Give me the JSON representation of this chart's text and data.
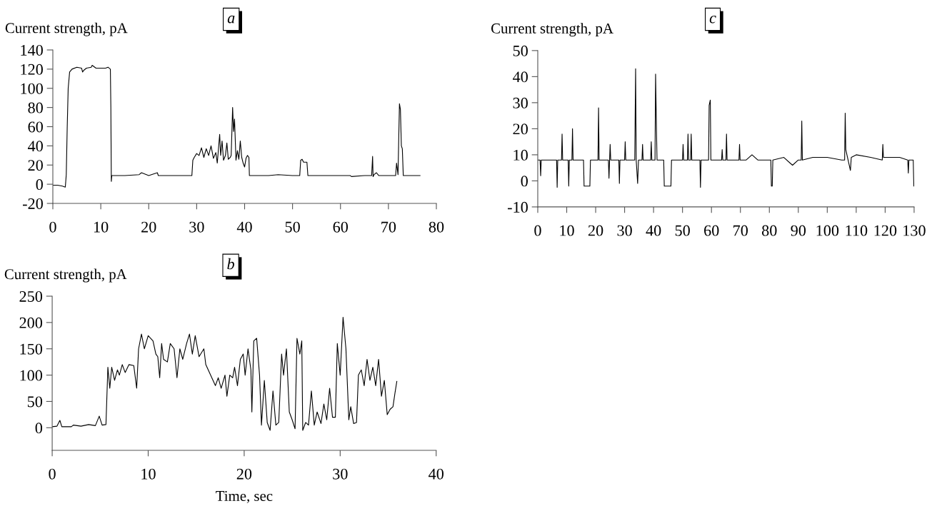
{
  "chart_data": [
    {
      "type": "line",
      "title": "a",
      "ylabel": "Current strength, pA",
      "xlim": [
        0,
        80
      ],
      "xticks": [
        0,
        10,
        20,
        30,
        40,
        50,
        60,
        70,
        80
      ],
      "ylim": [
        -20,
        140
      ],
      "yticks": [
        -20,
        0,
        20,
        40,
        60,
        80,
        100,
        120,
        140
      ],
      "series": [
        {
          "color": "#000000",
          "x": [
            0,
            1,
            2,
            2.6,
            2.8,
            3.0,
            3.2,
            3.5,
            4,
            5,
            6,
            6.2,
            6.5,
            7,
            8,
            8.2,
            9,
            10,
            11,
            11.5,
            12,
            12.1,
            12.2,
            12.3,
            15,
            18,
            18.5,
            20,
            21.8,
            22,
            25,
            29,
            29.2,
            29.5,
            30,
            30.5,
            31,
            31.5,
            32,
            32.5,
            33,
            33.5,
            34,
            34.3,
            34.8,
            35,
            35.3,
            35.6,
            36,
            36.3,
            36.6,
            37,
            37.2,
            37.5,
            37.7,
            37.9,
            38.2,
            38.5,
            38.8,
            39.1,
            39.4,
            39.7,
            40,
            40.3,
            40.6,
            40.9,
            41,
            45,
            47,
            50,
            51.5,
            51.7,
            52,
            52.3,
            53,
            53.2,
            55,
            60,
            62,
            62.3,
            65,
            66.5,
            66.7,
            66.8,
            67,
            67.5,
            68,
            71.5,
            71.7,
            72,
            72.3,
            72.5,
            72.7,
            72.9,
            73.1,
            76.6
          ],
          "values": [
            -1,
            -1,
            -2,
            -3,
            10,
            60,
            100,
            117,
            120,
            122,
            121,
            117,
            119,
            121,
            122,
            124,
            121,
            121,
            121,
            122,
            120,
            80,
            3,
            9,
            9,
            10,
            12,
            9,
            12,
            9,
            9,
            9,
            25,
            28,
            32,
            30,
            38,
            28,
            37,
            30,
            40,
            27,
            33,
            22,
            52,
            30,
            45,
            25,
            30,
            43,
            26,
            28,
            30,
            80,
            55,
            68,
            25,
            35,
            26,
            45,
            28,
            22,
            18,
            27,
            30,
            28,
            9,
            9,
            10,
            9,
            9,
            25,
            26,
            23,
            23,
            9,
            9,
            9,
            9,
            8,
            9,
            9,
            29,
            8,
            10,
            12,
            9,
            9,
            22,
            10,
            84,
            78,
            40,
            37,
            9,
            9
          ]
        }
      ]
    },
    {
      "type": "line",
      "title": "c",
      "ylabel": "Current strength, pA",
      "xlim": [
        0,
        130
      ],
      "xticks": [
        0,
        10,
        20,
        30,
        40,
        50,
        60,
        70,
        80,
        90,
        100,
        110,
        120,
        130
      ],
      "ylim": [
        -10,
        50
      ],
      "yticks": [
        -10,
        0,
        10,
        20,
        30,
        40,
        50
      ],
      "series": [
        {
          "color": "#000000",
          "x": [
            0,
            0.8,
            1,
            1.2,
            6.5,
            6.7,
            6.9,
            8.2,
            8.4,
            8.6,
            10.5,
            10.7,
            10.9,
            11.8,
            12,
            12.2,
            15.8,
            16,
            18,
            18.2,
            20.8,
            21,
            21.2,
            24.4,
            24.6,
            25,
            25.2,
            28,
            28.2,
            28.4,
            30,
            30.2,
            30.4,
            33.5,
            33.8,
            34,
            34.5,
            34.8,
            36,
            36.2,
            36.4,
            39,
            39.2,
            39.4,
            40.5,
            40.7,
            41,
            41.2,
            43.5,
            43.7,
            46,
            46.2,
            50,
            50.2,
            50.4,
            51.7,
            51.9,
            52.1,
            52.8,
            53,
            53.2,
            56,
            56.2,
            56.4,
            59,
            59.2,
            59.6,
            59.8,
            63.5,
            63.7,
            63.9,
            65,
            65.2,
            65.4,
            69.5,
            69.7,
            69.9,
            72,
            74,
            76,
            80.5,
            80.7,
            81,
            81.2,
            85,
            88,
            90,
            91,
            91.2,
            91.4,
            95,
            100,
            105,
            106,
            106.2,
            106.4,
            107,
            108,
            108.3,
            110,
            115,
            119,
            119.2,
            119.4,
            122,
            125,
            127.8,
            128,
            128.2,
            129.7,
            129.9,
            130
          ],
          "values": [
            8,
            8,
            2,
            8,
            8,
            -2.5,
            8,
            8,
            18,
            8,
            8,
            -2,
            8,
            8,
            20,
            8,
            8,
            -2,
            -2,
            8,
            8,
            28,
            8,
            8,
            1,
            14,
            8,
            8,
            -1,
            8,
            8,
            15,
            8,
            8,
            43,
            8,
            -1,
            8,
            8,
            14,
            8,
            8,
            15,
            8,
            8,
            41,
            20,
            8,
            8,
            -2,
            -2,
            8,
            8,
            14,
            8,
            8,
            18,
            8,
            8,
            18,
            8,
            8,
            -2.5,
            8,
            8,
            29,
            31,
            8,
            8,
            12,
            8,
            8,
            18,
            8,
            8,
            14,
            8,
            8,
            10,
            8,
            8,
            -2,
            -2,
            8,
            9,
            6,
            8,
            8,
            23,
            8,
            9,
            9,
            8,
            8,
            26,
            12,
            9,
            4,
            9,
            10,
            9,
            8,
            14,
            9,
            9,
            9,
            8,
            3,
            8,
            8,
            -2,
            -2
          ]
        }
      ]
    },
    {
      "type": "line",
      "title": "b",
      "ylabel": "Current strength, pA",
      "xlabel": "Time, sec",
      "xlim": [
        0,
        40
      ],
      "xticks": [
        0,
        10,
        20,
        30,
        40
      ],
      "ylim": [
        -43,
        250
      ],
      "yticks": [
        0,
        50,
        100,
        150,
        200,
        250
      ],
      "series": [
        {
          "color": "#000000",
          "x": [
            0,
            0.5,
            0.8,
            1,
            2,
            2.2,
            3,
            3.8,
            4.5,
            4.9,
            5.2,
            5.6,
            5.8,
            6,
            6.2,
            6.5,
            6.8,
            7,
            7.3,
            7.6,
            8,
            8.5,
            8.8,
            9,
            9.3,
            9.6,
            10,
            10.5,
            10.8,
            11,
            11.2,
            11.4,
            11.6,
            12,
            12.3,
            12.7,
            13,
            13.3,
            13.6,
            14,
            14.3,
            14.6,
            14.9,
            15.3,
            15.8,
            16,
            16.5,
            17,
            17.3,
            17.6,
            18,
            18.2,
            18.5,
            18.8,
            19,
            19.3,
            19.6,
            19.9,
            20.1,
            20.4,
            20.7,
            20.8,
            21,
            21.3,
            21.6,
            21.8,
            22.1,
            22.4,
            22.7,
            23,
            23.3,
            23.6,
            23.9,
            24.1,
            24.4,
            24.7,
            25,
            25.3,
            25.5,
            25.8,
            26,
            26.1,
            26.4,
            26.7,
            27,
            27.3,
            27.6,
            28,
            28.3,
            28.6,
            28.9,
            29.2,
            29.5,
            29.7,
            30,
            30.3,
            30.6,
            30.9,
            31.1,
            31.4,
            31.7,
            31.9,
            32.2,
            32.5,
            32.8,
            33.1,
            33.4,
            33.7,
            34,
            34.3,
            34.6,
            34.9,
            35.2,
            35.5,
            35.7,
            35.9
          ],
          "values": [
            2,
            3,
            14,
            2,
            2,
            5,
            3,
            6,
            4,
            22,
            5,
            6,
            115,
            75,
            115,
            90,
            110,
            100,
            120,
            105,
            120,
            118,
            75,
            150,
            178,
            150,
            175,
            165,
            140,
            135,
            95,
            160,
            130,
            125,
            160,
            150,
            95,
            150,
            130,
            160,
            178,
            140,
            175,
            135,
            150,
            120,
            100,
            80,
            95,
            75,
            100,
            60,
            100,
            95,
            115,
            80,
            130,
            140,
            100,
            150,
            110,
            30,
            165,
            170,
            100,
            5,
            90,
            10,
            -5,
            70,
            5,
            10,
            140,
            100,
            150,
            30,
            15,
            -2,
            170,
            140,
            165,
            -5,
            10,
            5,
            70,
            5,
            30,
            8,
            45,
            15,
            75,
            20,
            20,
            160,
            100,
            210,
            150,
            15,
            40,
            8,
            10,
            100,
            110,
            80,
            130,
            90,
            115,
            80,
            130,
            60,
            90,
            25,
            35,
            40,
            65,
            88
          ]
        }
      ]
    }
  ]
}
